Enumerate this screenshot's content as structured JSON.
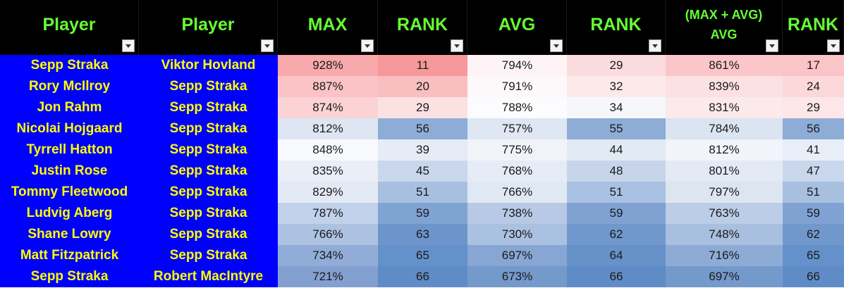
{
  "headers": [
    {
      "label": "Player",
      "name": "player-1"
    },
    {
      "label": "Player",
      "name": "player-2"
    },
    {
      "label": "MAX",
      "name": "max"
    },
    {
      "label": "RANK",
      "name": "max-rank"
    },
    {
      "label": "AVG",
      "name": "avg"
    },
    {
      "label": "RANK",
      "name": "avg-rank"
    },
    {
      "label": "(MAX + AVG)\nAVG",
      "name": "combined-avg"
    },
    {
      "label": "RANK",
      "name": "combined-rank"
    }
  ],
  "rows": [
    {
      "player": "Sepp Straka",
      "opponent": "Viktor Hovland",
      "max": "928%",
      "max_rank": "11",
      "avg": "794%",
      "avg_rank": "29",
      "combo": "861%",
      "combo_rank": "17"
    },
    {
      "player": "Rory McIlroy",
      "opponent": "Sepp Straka",
      "max": "887%",
      "max_rank": "20",
      "avg": "791%",
      "avg_rank": "32",
      "combo": "839%",
      "combo_rank": "24"
    },
    {
      "player": "Jon Rahm",
      "opponent": "Sepp Straka",
      "max": "874%",
      "max_rank": "29",
      "avg": "788%",
      "avg_rank": "34",
      "combo": "831%",
      "combo_rank": "29"
    },
    {
      "player": "Nicolai Hojgaard",
      "opponent": "Sepp Straka",
      "max": "812%",
      "max_rank": "56",
      "avg": "757%",
      "avg_rank": "55",
      "combo": "784%",
      "combo_rank": "56"
    },
    {
      "player": "Tyrrell Hatton",
      "opponent": "Sepp Straka",
      "max": "848%",
      "max_rank": "39",
      "avg": "775%",
      "avg_rank": "44",
      "combo": "812%",
      "combo_rank": "41"
    },
    {
      "player": "Justin Rose",
      "opponent": "Sepp Straka",
      "max": "835%",
      "max_rank": "45",
      "avg": "768%",
      "avg_rank": "48",
      "combo": "801%",
      "combo_rank": "47"
    },
    {
      "player": "Tommy Fleetwood",
      "opponent": "Sepp Straka",
      "max": "829%",
      "max_rank": "51",
      "avg": "766%",
      "avg_rank": "51",
      "combo": "797%",
      "combo_rank": "51"
    },
    {
      "player": "Ludvig Aberg",
      "opponent": "Sepp Straka",
      "max": "787%",
      "max_rank": "59",
      "avg": "738%",
      "avg_rank": "59",
      "combo": "763%",
      "combo_rank": "59"
    },
    {
      "player": "Shane Lowry",
      "opponent": "Sepp Straka",
      "max": "766%",
      "max_rank": "63",
      "avg": "730%",
      "avg_rank": "62",
      "combo": "748%",
      "combo_rank": "62"
    },
    {
      "player": "Matt Fitzpatrick",
      "opponent": "Sepp Straka",
      "max": "734%",
      "max_rank": "65",
      "avg": "697%",
      "avg_rank": "64",
      "combo": "716%",
      "combo_rank": "65"
    },
    {
      "player": "Sepp Straka",
      "opponent": "Robert MacIntyre",
      "max": "721%",
      "max_rank": "66",
      "avg": "673%",
      "avg_rank": "66",
      "combo": "697%",
      "combo_rank": "66"
    }
  ],
  "fills": [
    [
      "#f8a9ab",
      "#f7989a",
      "#fef4f5",
      "#fbdcde",
      "#fbc6c9",
      "#fbc5c7"
    ],
    [
      "#fbc3c5",
      "#f9bec0",
      "#fdf8f9",
      "#fce9ea",
      "#fce1e3",
      "#fcd8da"
    ],
    [
      "#fcd3d5",
      "#fce1e2",
      "#fbfcfd",
      "#f6f7fb",
      "#fbe9eb",
      "#fce6e7"
    ],
    [
      "#dde6f2",
      "#8dadd7",
      "#dfe7f3",
      "#8dadd7",
      "#dbe4f1",
      "#8dadd7"
    ],
    [
      "#f7f9fc",
      "#e6ecf6",
      "#f0f4f9",
      "#e2eaf4",
      "#f1f4fa",
      "#e8eef7"
    ],
    [
      "#e9eef7",
      "#c9d7ec",
      "#e5ecf6",
      "#c6d5ea",
      "#e4eaf5",
      "#c9d7ec"
    ],
    [
      "#e4eaf5",
      "#a8c0e0",
      "#e0e8f4",
      "#a9c1e2",
      "#dde5f1",
      "#a8c0e0"
    ],
    [
      "#c1d1e9",
      "#7fa3d2",
      "#b7c9e5",
      "#7fa2d2",
      "#bccde7",
      "#7fa2d2"
    ],
    [
      "#adc2e1",
      "#6d95cc",
      "#abc1e1",
      "#7198cd",
      "#a9bfdf",
      "#7198cd"
    ],
    [
      "#91add7",
      "#6491c9",
      "#87a6d4",
      "#6692c9",
      "#8eabd6",
      "#6491c9"
    ],
    [
      "#839fd0",
      "#5f8cc7",
      "#7499cb",
      "#5f8cc7",
      "#7499cb",
      "#5f8cc7"
    ]
  ]
}
